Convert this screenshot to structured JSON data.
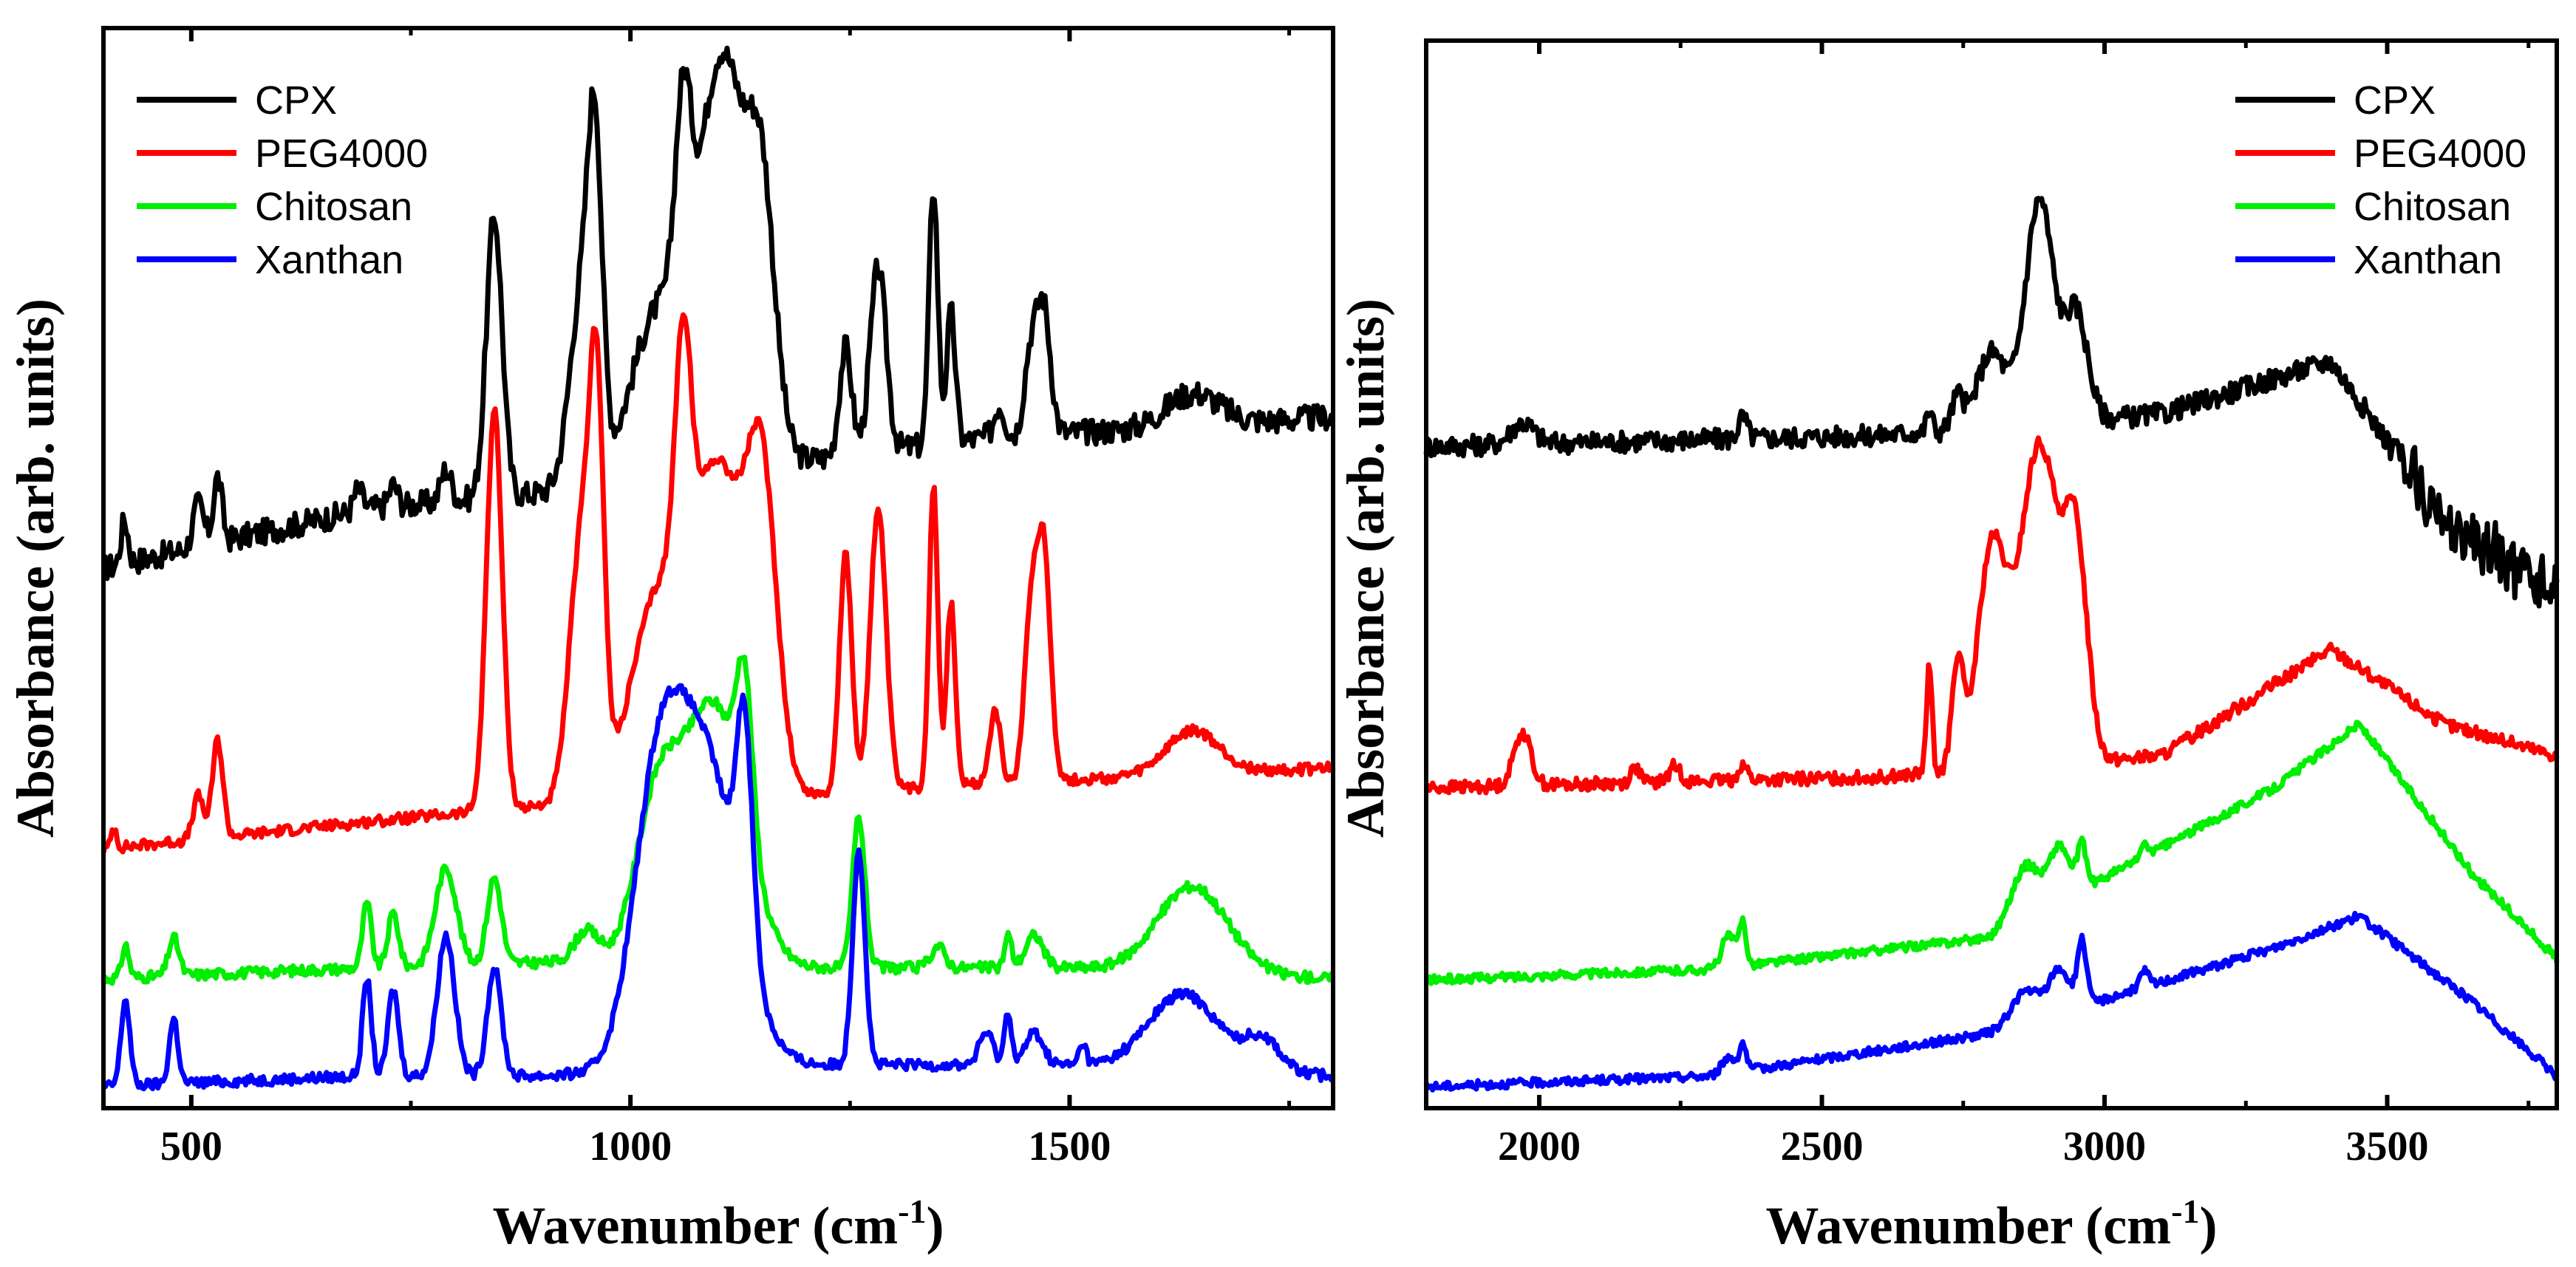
{
  "figure": {
    "description_free": true
  },
  "chart_data": [
    {
      "type": "line",
      "panel": "left",
      "title": "",
      "xlabel": "Wavenumber (cm",
      "xlabel_sup": "-1",
      "xlabel_close": ")",
      "ylabel": "Absorbance (arb. units)",
      "xlim": [
        400,
        1800
      ],
      "ylim": [
        0,
        1
      ],
      "xticks": [
        500,
        1000,
        1500
      ],
      "x_minor_ticks": [
        750,
        1250,
        1750
      ],
      "tick_labels": [
        "500",
        "1000",
        "1500"
      ],
      "legend_position": "top-left",
      "series": [
        {
          "name": "CPX",
          "color": "#000000",
          "baseline": 0.56,
          "noise": 0.012,
          "edges": [
            [
              400,
              0.5
            ],
            [
              700,
              0.555
            ],
            [
              900,
              0.57
            ],
            [
              1200,
              0.6
            ],
            [
              1400,
              0.62
            ],
            [
              1800,
              0.64
            ]
          ],
          "peaks": [
            [
              424,
              0.04,
              4
            ],
            [
              508,
              0.04,
              6
            ],
            [
              530,
              0.06,
              5
            ],
            [
              690,
              0.02,
              5
            ],
            [
              730,
              0.02,
              5
            ],
            [
              790,
              0.03,
              6
            ],
            [
              845,
              0.26,
              9
            ],
            [
              945,
              0.18,
              14
            ],
            [
              960,
              0.25,
              8
            ],
            [
              1030,
              0.15,
              30
            ],
            [
              1060,
              0.18,
              9
            ],
            [
              1105,
              0.38,
              28
            ],
            [
              1150,
              0.2,
              15
            ],
            [
              1245,
              0.1,
              7
            ],
            [
              1282,
              0.17,
              9
            ],
            [
              1345,
              0.24,
              5
            ],
            [
              1365,
              0.12,
              5
            ],
            [
              1420,
              0.03,
              6
            ],
            [
              1455,
              0.07,
              7
            ],
            [
              1470,
              0.12,
              8
            ],
            [
              1640,
              0.03,
              30
            ]
          ]
        },
        {
          "name": "PEG4000",
          "color": "#ff0000",
          "baseline": 0.25,
          "noise": 0.005,
          "edges": [
            [
              400,
              0.24
            ],
            [
              700,
              0.265
            ],
            [
              900,
              0.28
            ],
            [
              1200,
              0.29
            ],
            [
              1400,
              0.3
            ],
            [
              1800,
              0.315
            ]
          ],
          "peaks": [
            [
              412,
              0.02,
              3
            ],
            [
              508,
              0.04,
              6
            ],
            [
              530,
              0.09,
              6
            ],
            [
              845,
              0.37,
              9
            ],
            [
              945,
              0.25,
              14
            ],
            [
              962,
              0.3,
              8
            ],
            [
              1060,
              0.22,
              9
            ],
            [
              1100,
              0.3,
              30
            ],
            [
              1150,
              0.26,
              17
            ],
            [
              1030,
              0.18,
              30
            ],
            [
              1245,
              0.22,
              7
            ],
            [
              1282,
              0.26,
              9
            ],
            [
              1345,
              0.28,
              5
            ],
            [
              1365,
              0.17,
              5
            ],
            [
              1415,
              0.07,
              6
            ],
            [
              1455,
              0.14,
              7
            ],
            [
              1470,
              0.22,
              8
            ],
            [
              1640,
              0.04,
              30
            ]
          ]
        },
        {
          "name": "Chitosan",
          "color": "#00ee00",
          "baseline": 0.13,
          "noise": 0.005,
          "edges": [
            [
              400,
              0.12
            ],
            [
              700,
              0.13
            ],
            [
              900,
              0.135
            ],
            [
              1200,
              0.13
            ],
            [
              1500,
              0.13
            ],
            [
              1800,
              0.12
            ]
          ],
          "peaks": [
            [
              425,
              0.03,
              4
            ],
            [
              480,
              0.035,
              6
            ],
            [
              700,
              0.06,
              5
            ],
            [
              730,
              0.05,
              6
            ],
            [
              790,
              0.09,
              12
            ],
            [
              845,
              0.08,
              8
            ],
            [
              950,
              0.03,
              14
            ],
            [
              1030,
              0.14,
              25
            ],
            [
              1095,
              0.24,
              35
            ],
            [
              1130,
              0.14,
              9
            ],
            [
              1260,
              0.14,
              7
            ],
            [
              1350,
              0.02,
              8
            ],
            [
              1430,
              0.03,
              4
            ],
            [
              1460,
              0.03,
              10
            ],
            [
              1640,
              0.08,
              40
            ]
          ]
        },
        {
          "name": "Xanthan",
          "color": "#0000ff",
          "baseline": 0.03,
          "noise": 0.005,
          "edges": [
            [
              400,
              0.02
            ],
            [
              700,
              0.03
            ],
            [
              900,
              0.03
            ],
            [
              1200,
              0.04
            ],
            [
              1500,
              0.04
            ],
            [
              1800,
              0.03
            ]
          ],
          "peaks": [
            [
              425,
              0.08,
              5
            ],
            [
              480,
              0.06,
              5
            ],
            [
              700,
              0.09,
              5
            ],
            [
              730,
              0.08,
              6
            ],
            [
              790,
              0.13,
              10
            ],
            [
              845,
              0.1,
              8
            ],
            [
              1030,
              0.22,
              28
            ],
            [
              1085,
              0.28,
              38
            ],
            [
              1130,
              0.2,
              9
            ],
            [
              1260,
              0.2,
              7
            ],
            [
              1405,
              0.03,
              8
            ],
            [
              1430,
              0.05,
              4
            ],
            [
              1460,
              0.03,
              10
            ],
            [
              1515,
              0.02,
              4
            ],
            [
              1630,
              0.07,
              40
            ],
            [
              1720,
              0.03,
              20
            ]
          ]
        }
      ]
    },
    {
      "type": "line",
      "panel": "right",
      "title": "",
      "xlabel": "Wavenumber (cm",
      "xlabel_sup": "-1",
      "xlabel_close": ")",
      "ylabel": "Absorbance (arb. units)",
      "xlim": [
        1800,
        3800
      ],
      "ylim": [
        0,
        1
      ],
      "xticks": [
        2000,
        2500,
        3000,
        3500
      ],
      "x_minor_ticks": [
        2250,
        2750,
        3250,
        3750
      ],
      "tick_labels": [
        "2000",
        "2500",
        "3000",
        "3500"
      ],
      "legend_position": "top-right",
      "series": [
        {
          "name": "CPX",
          "color": "#000000",
          "baseline": 0.62,
          "noise": 0.01,
          "edges": [
            [
              1800,
              0.62
            ],
            [
              2600,
              0.63
            ],
            [
              3100,
              0.65
            ],
            [
              3400,
              0.7
            ],
            [
              3600,
              0.55
            ],
            [
              3800,
              0.48
            ]
          ],
          "peaks": [
            [
              1970,
              0.02,
              20
            ],
            [
              2360,
              0.02,
              8
            ],
            [
              2690,
              0.02,
              5
            ],
            [
              2740,
              0.03,
              10
            ],
            [
              2800,
              0.07,
              25
            ],
            [
              2885,
              0.21,
              25
            ],
            [
              2950,
              0.1,
              20
            ],
            [
              3430,
              0.0,
              100
            ]
          ]
        },
        {
          "name": "PEG4000",
          "color": "#ff0000",
          "baseline": 0.3,
          "noise": 0.006,
          "edges": [
            [
              1800,
              0.3
            ],
            [
              2600,
              0.31
            ],
            [
              3100,
              0.33
            ],
            [
              3400,
              0.43
            ],
            [
              3600,
              0.36
            ],
            [
              3800,
              0.33
            ]
          ],
          "peaks": [
            [
              1970,
              0.05,
              15
            ],
            [
              2170,
              0.015,
              8
            ],
            [
              2240,
              0.015,
              10
            ],
            [
              2360,
              0.015,
              8
            ],
            [
              2690,
              0.1,
              5
            ],
            [
              2740,
              0.1,
              10
            ],
            [
              2800,
              0.2,
              25
            ],
            [
              2885,
              0.3,
              35
            ],
            [
              2950,
              0.18,
              20
            ],
            [
              3430,
              0.0,
              100
            ]
          ]
        },
        {
          "name": "Chitosan",
          "color": "#00ee00",
          "baseline": 0.12,
          "noise": 0.004,
          "edges": [
            [
              1800,
              0.12
            ],
            [
              2300,
              0.13
            ],
            [
              2800,
              0.16
            ],
            [
              3300,
              0.3
            ],
            [
              3450,
              0.36
            ],
            [
              3650,
              0.22
            ],
            [
              3800,
              0.14
            ]
          ],
          "peaks": [
            [
              2335,
              0.03,
              12
            ],
            [
              2360,
              0.04,
              6
            ],
            [
              2860,
              0.05,
              25
            ],
            [
              2920,
              0.05,
              18
            ],
            [
              2960,
              0.04,
              8
            ],
            [
              3070,
              0.01,
              8
            ]
          ]
        },
        {
          "name": "Xanthan",
          "color": "#0000ff",
          "baseline": 0.02,
          "noise": 0.004,
          "edges": [
            [
              1800,
              0.02
            ],
            [
              2300,
              0.03
            ],
            [
              2800,
              0.07
            ],
            [
              3300,
              0.15
            ],
            [
              3450,
              0.18
            ],
            [
              3650,
              0.1
            ],
            [
              3800,
              0.03
            ]
          ],
          "peaks": [
            [
              2335,
              0.015,
              12
            ],
            [
              2360,
              0.025,
              6
            ],
            [
              2860,
              0.03,
              25
            ],
            [
              2920,
              0.04,
              18
            ],
            [
              2960,
              0.06,
              8
            ],
            [
              3070,
              0.015,
              8
            ]
          ]
        }
      ]
    }
  ]
}
